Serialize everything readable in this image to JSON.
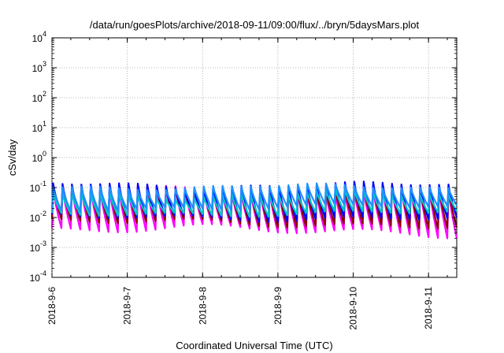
{
  "chart_data": {
    "type": "line",
    "title": "/data/run/goesPlots/archive/2018-09-11/09:00/flux/../bryn/5daysMars.plot",
    "xlabel": "Coordinated Universal Time (UTC)",
    "ylabel": "cSv/day",
    "yscale": "log",
    "ylim": [
      0.0001,
      10000
    ],
    "xlim": [
      "2018-09-06T00:00",
      "2018-09-11T09:00"
    ],
    "grid": true,
    "x_ticks": [
      "2018-9-6",
      "2018-9-7",
      "2018-9-8",
      "2018-9-9",
      "2018-9-10",
      "2018-9-11"
    ],
    "y_ticks": [
      {
        "base": "10",
        "exp": "-4"
      },
      {
        "base": "10",
        "exp": "-3"
      },
      {
        "base": "10",
        "exp": "-2"
      },
      {
        "base": "10",
        "exp": "-1"
      },
      {
        "base": "10",
        "exp": "0"
      },
      {
        "base": "10",
        "exp": "1"
      },
      {
        "base": "10",
        "exp": "2"
      },
      {
        "base": "10",
        "exp": "3"
      },
      {
        "base": "10",
        "exp": "4"
      }
    ],
    "cycle_hours": 3,
    "series": [
      {
        "color": "#ff00ff",
        "peak": [
          0.06,
          0.12
        ],
        "trough": [
          0.002,
          0.006
        ]
      },
      {
        "color": "#8b0000",
        "peak": [
          0.07,
          0.13
        ],
        "trough": [
          0.004,
          0.01
        ]
      },
      {
        "color": "#0000ff",
        "peak": [
          0.09,
          0.16
        ],
        "trough": [
          0.007,
          0.015
        ]
      },
      {
        "color": "#00c8c8",
        "peak": [
          0.04,
          0.09
        ],
        "trough": [
          0.01,
          0.02
        ]
      },
      {
        "color": "#1e90ff",
        "peak": [
          0.08,
          0.14
        ],
        "trough": [
          0.015,
          0.03
        ]
      }
    ]
  }
}
